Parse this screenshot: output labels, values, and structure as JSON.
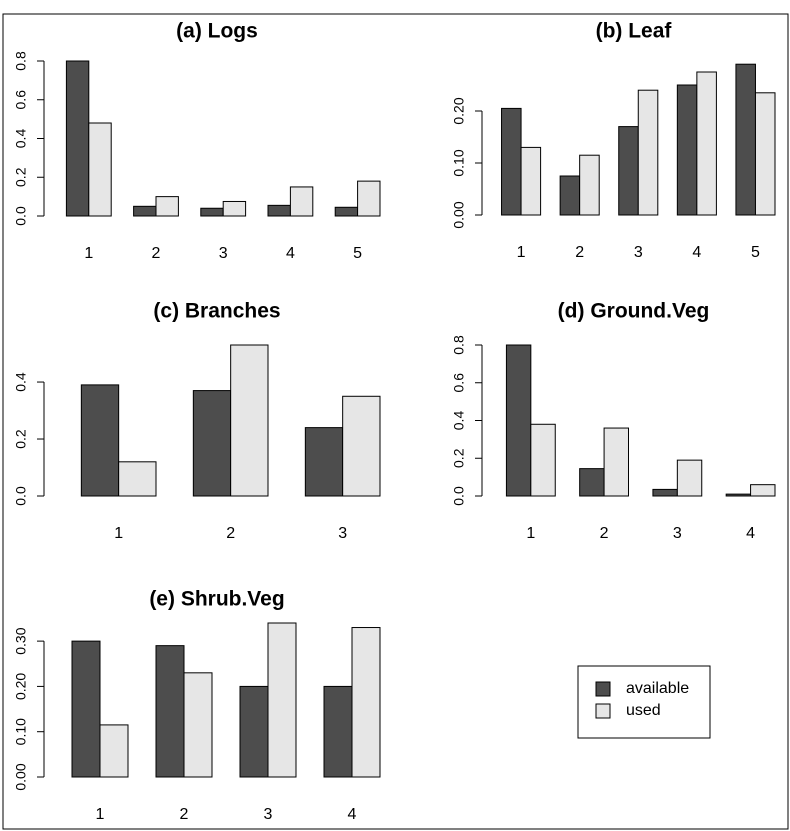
{
  "chart_data": [
    {
      "type": "bar",
      "title": "(a) Logs",
      "categories": [
        "1",
        "2",
        "3",
        "4",
        "5"
      ],
      "series": [
        {
          "name": "available",
          "color": "#4d4d4d",
          "values": [
            0.8,
            0.05,
            0.04,
            0.055,
            0.045
          ]
        },
        {
          "name": "used",
          "color": "#e6e6e6",
          "values": [
            0.48,
            0.1,
            0.075,
            0.15,
            0.18
          ]
        }
      ],
      "ylim": [
        0,
        0.8
      ],
      "yticks": [
        {
          "value": 0,
          "label": "0.0"
        },
        0.2,
        0.4,
        0.6,
        0.8
      ]
    },
    {
      "type": "bar",
      "title": "(b) Leaf",
      "categories": [
        "1",
        "2",
        "3",
        "4",
        "5"
      ],
      "series": [
        {
          "name": "available",
          "color": "#4d4d4d",
          "values": [
            0.205,
            0.075,
            0.17,
            0.25,
            0.29
          ]
        },
        {
          "name": "used",
          "color": "#e6e6e6",
          "values": [
            0.13,
            0.115,
            0.24,
            0.275,
            0.235
          ]
        }
      ],
      "ylim": [
        0,
        0.3
      ],
      "yticks": [
        {
          "value": 0,
          "label": "0.00"
        },
        {
          "value": 0.1,
          "label": "0.10"
        },
        {
          "value": 0.2,
          "label": "0.20"
        }
      ]
    },
    {
      "type": "bar",
      "title": "(c) Branches",
      "categories": [
        "1",
        "2",
        "3"
      ],
      "series": [
        {
          "name": "available",
          "color": "#4d4d4d",
          "values": [
            0.39,
            0.37,
            0.24
          ]
        },
        {
          "name": "used",
          "color": "#e6e6e6",
          "values": [
            0.12,
            0.53,
            0.35
          ]
        }
      ],
      "ylim": [
        0,
        0.53
      ],
      "yticks": [
        {
          "value": 0,
          "label": "0.0"
        },
        0.2,
        0.4
      ]
    },
    {
      "type": "bar",
      "title": "(d) Ground.Veg",
      "categories": [
        "1",
        "2",
        "3",
        "4"
      ],
      "series": [
        {
          "name": "available",
          "color": "#4d4d4d",
          "values": [
            0.8,
            0.145,
            0.035,
            0.01
          ]
        },
        {
          "name": "used",
          "color": "#e6e6e6",
          "values": [
            0.38,
            0.36,
            0.19,
            0.06
          ]
        }
      ],
      "ylim": [
        0,
        0.8
      ],
      "yticks": [
        {
          "value": 0,
          "label": "0.0"
        },
        0.2,
        0.4,
        0.6,
        0.8
      ]
    },
    {
      "type": "bar",
      "title": "(e) Shrub.Veg",
      "categories": [
        "1",
        "2",
        "3",
        "4"
      ],
      "series": [
        {
          "name": "available",
          "color": "#4d4d4d",
          "values": [
            0.3,
            0.29,
            0.2,
            0.2
          ]
        },
        {
          "name": "used",
          "color": "#e6e6e6",
          "values": [
            0.115,
            0.23,
            0.34,
            0.33
          ]
        }
      ],
      "ylim": [
        0,
        0.34
      ],
      "yticks": [
        {
          "value": 0,
          "label": "0.00"
        },
        {
          "value": 0.1,
          "label": "0.10"
        },
        {
          "value": 0.2,
          "label": "0.20"
        },
        {
          "value": 0.3,
          "label": "0.30"
        }
      ]
    }
  ]
}
